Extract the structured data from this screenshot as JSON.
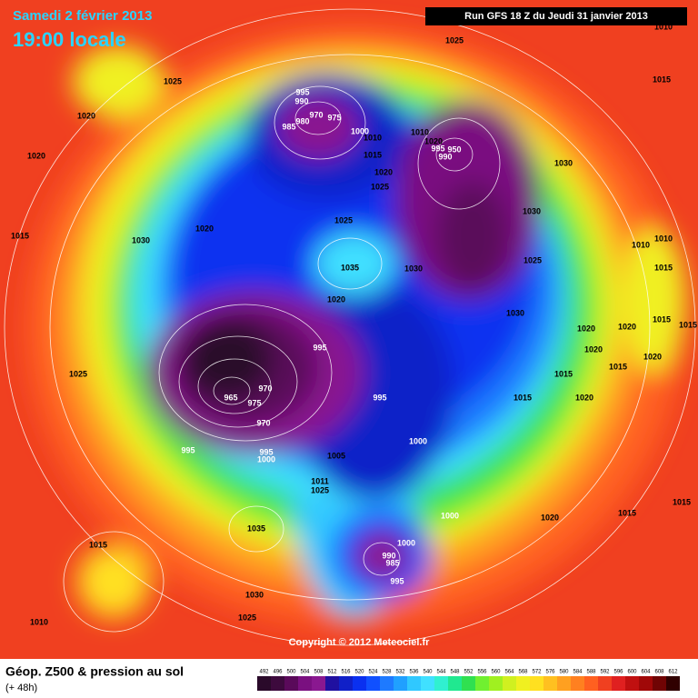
{
  "header": {
    "date": "Samedi 2 février 2013",
    "time": "19:00 locale",
    "run": "Run GFS 18 Z du Jeudi 31 janvier 2013"
  },
  "footer": {
    "copyright": "Copyright © 2012 Meteociel.fr",
    "product": "Géop. Z500 & pression au sol",
    "lead": "(+ 48h)"
  },
  "legend": {
    "levels": [
      492,
      496,
      500,
      504,
      508,
      512,
      516,
      520,
      524,
      528,
      532,
      536,
      540,
      544,
      548,
      552,
      556,
      560,
      564,
      568,
      572,
      576,
      580,
      584,
      588,
      592,
      596,
      600,
      604,
      608,
      612
    ],
    "colors": [
      "#2a0a2a",
      "#3d0a3d",
      "#5a0a5a",
      "#7a1080",
      "#8a1890",
      "#2010a0",
      "#1020c8",
      "#0a30f0",
      "#1050ff",
      "#1e7aff",
      "#20a0ff",
      "#30c8ff",
      "#40e0ff",
      "#30f0d0",
      "#20e890",
      "#30e050",
      "#70f030",
      "#a0f020",
      "#d0f020",
      "#f0f020",
      "#ffe020",
      "#ffc020",
      "#ffa020",
      "#ff8020",
      "#ff6020",
      "#f04020",
      "#e02020",
      "#c01010",
      "#a00808",
      "#700404",
      "#300000"
    ]
  },
  "pressure_labels": [
    1025,
    1010,
    1025,
    1015,
    1020,
    995,
    990,
    970,
    975,
    985,
    980,
    1000,
    1010,
    1010,
    1020,
    995,
    990,
    950,
    1015,
    1030,
    1020,
    1020,
    1025,
    1025,
    1020,
    1030,
    1015,
    1030,
    1010,
    1010,
    1035,
    1030,
    1025,
    1015,
    1020,
    1030,
    1020,
    1020,
    1015,
    1015,
    995,
    1020,
    1020,
    1025,
    1015,
    1015,
    970,
    965,
    975,
    995,
    1015,
    1020,
    970,
    1000,
    995,
    995,
    1000,
    1005,
    1011,
    1025,
    1000,
    1020,
    1015,
    1015,
    1035,
    1015,
    1000,
    990,
    985,
    995,
    1030,
    1025,
    1010
  ]
}
